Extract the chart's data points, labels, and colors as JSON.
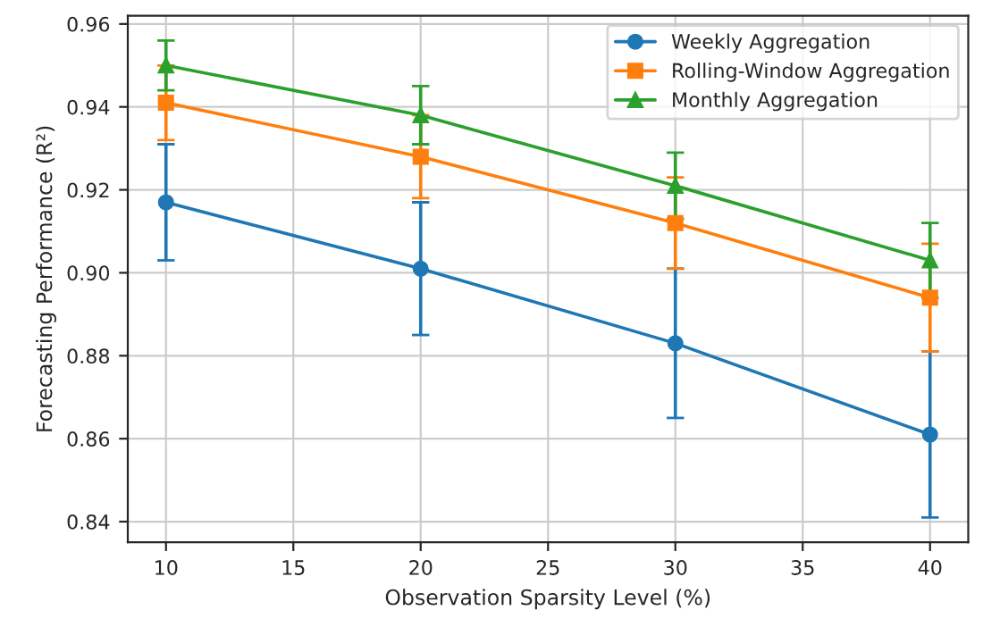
{
  "chart_data": {
    "type": "line",
    "xlabel": "Observation Sparsity Level (%)",
    "ylabel": "Forecasting Performance (R²)",
    "x": [
      10,
      20,
      30,
      40
    ],
    "series": [
      {
        "name": "Weekly Aggregation",
        "color": "#1f77b4",
        "marker": "circle",
        "values": [
          0.917,
          0.901,
          0.883,
          0.861
        ],
        "errors": [
          0.014,
          0.016,
          0.018,
          0.02
        ]
      },
      {
        "name": "Rolling-Window Aggregation",
        "color": "#ff7f0e",
        "marker": "square",
        "values": [
          0.941,
          0.928,
          0.912,
          0.894
        ],
        "errors": [
          0.009,
          0.01,
          0.011,
          0.013
        ]
      },
      {
        "name": "Monthly Aggregation",
        "color": "#2ca02c",
        "marker": "triangle",
        "values": [
          0.95,
          0.938,
          0.921,
          0.903
        ],
        "errors": [
          0.006,
          0.007,
          0.008,
          0.009
        ]
      }
    ],
    "xlim": [
      8.5,
      41.5
    ],
    "xticks": [
      10,
      15,
      20,
      25,
      30,
      35,
      40
    ],
    "ylim": [
      0.835,
      0.962
    ],
    "yticks": [
      {
        "value": 0.84,
        "label": "0.84"
      },
      {
        "value": 0.86,
        "label": "0.86"
      },
      {
        "value": 0.88,
        "label": "0.88"
      },
      {
        "value": 0.9,
        "label": "0.90"
      },
      {
        "value": 0.92,
        "label": "0.92"
      },
      {
        "value": 0.94,
        "label": "0.94"
      },
      {
        "value": 0.96,
        "label": "0.96"
      }
    ],
    "grid": true,
    "legend": "top right"
  }
}
